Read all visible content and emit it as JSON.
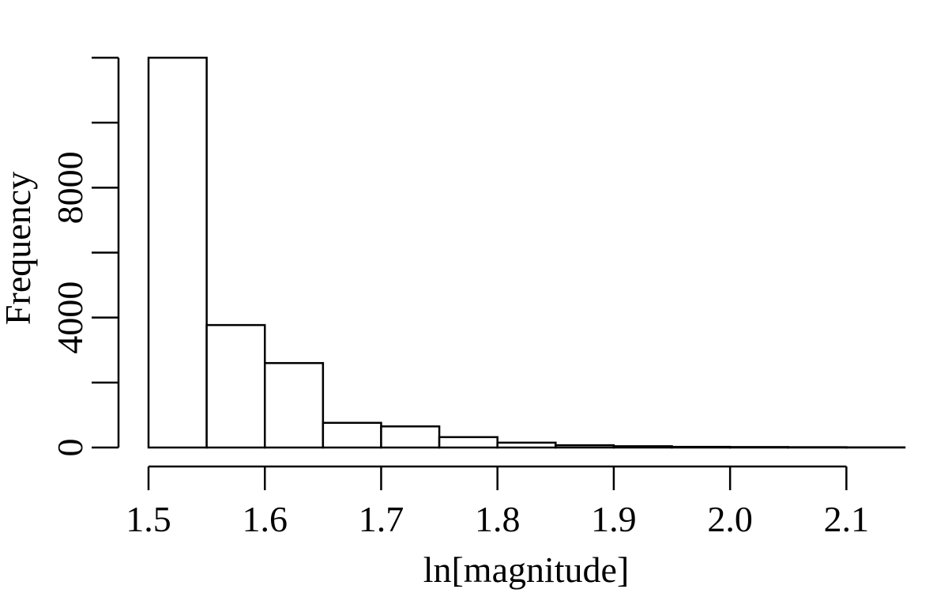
{
  "chart_data": {
    "type": "bar",
    "title": "",
    "xlabel": "ln[magnitude]",
    "ylabel": "Frequency",
    "bin_edges": [
      1.5,
      1.55,
      1.6,
      1.65,
      1.7,
      1.75,
      1.8,
      1.85,
      1.9,
      1.95,
      2.0,
      2.05,
      2.1,
      2.15
    ],
    "values": [
      12000,
      3770,
      2600,
      760,
      650,
      320,
      150,
      70,
      40,
      20,
      15,
      10,
      5
    ],
    "xlim": [
      1.5,
      2.15
    ],
    "ylim": [
      0,
      12000
    ],
    "x_ticks": [
      1.5,
      1.6,
      1.7,
      1.8,
      1.9,
      2.0,
      2.1
    ],
    "x_tick_labels": [
      "1.5",
      "1.6",
      "1.7",
      "1.8",
      "1.9",
      "2.0",
      "2.1"
    ],
    "y_ticks": [
      0,
      2000,
      4000,
      6000,
      8000,
      10000,
      12000
    ],
    "y_tick_labels": [
      "0",
      "",
      "4000",
      "",
      "8000",
      "",
      ""
    ],
    "grid": false,
    "legend": "none"
  }
}
